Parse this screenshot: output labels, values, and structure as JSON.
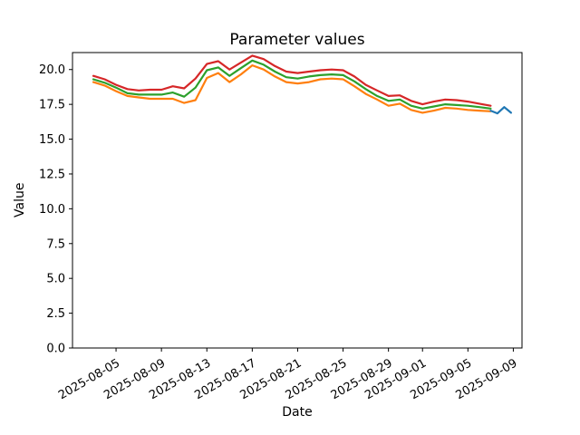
{
  "figure": {
    "title": "Parameter values",
    "xlabel": "Date",
    "ylabel": "Value",
    "background": "#ffffff",
    "spine_color": "#000000"
  },
  "chart_data": {
    "type": "line",
    "title": "Parameter values",
    "xlabel": "Date",
    "ylabel": "Value",
    "grid": false,
    "legend_position": "none",
    "ylim": [
      0.0,
      21.22
    ],
    "y_ticks": [
      0.0,
      2.5,
      5.0,
      7.5,
      10.0,
      12.5,
      15.0,
      17.5,
      20.0
    ],
    "x_start_date": "2025-08-03",
    "x_tick_labels": [
      "2025-08-05",
      "2025-08-09",
      "2025-08-13",
      "2025-08-17",
      "2025-08-21",
      "2025-08-25",
      "2025-08-29",
      "2025-09-01",
      "2025-09-05",
      "2025-09-09"
    ],
    "x_tick_day_index": [
      2,
      6,
      10,
      14,
      18,
      22,
      26,
      29,
      33,
      37
    ],
    "dates": [
      "2025-08-03",
      "2025-08-04",
      "2025-08-05",
      "2025-08-06",
      "2025-08-07",
      "2025-08-08",
      "2025-08-09",
      "2025-08-10",
      "2025-08-11",
      "2025-08-12",
      "2025-08-13",
      "2025-08-14",
      "2025-08-15",
      "2025-08-16",
      "2025-08-17",
      "2025-08-18",
      "2025-08-19",
      "2025-08-20",
      "2025-08-21",
      "2025-08-22",
      "2025-08-23",
      "2025-08-24",
      "2025-08-25",
      "2025-08-26",
      "2025-08-27",
      "2025-08-28",
      "2025-08-29",
      "2025-08-30",
      "2025-08-31",
      "2025-09-01",
      "2025-09-02",
      "2025-09-03",
      "2025-09-04",
      "2025-09-05",
      "2025-09-06",
      "2025-09-07"
    ],
    "series": [
      {
        "name": "red-parameter-line",
        "color": "#d62728",
        "values": [
          19.55,
          19.3,
          18.9,
          18.6,
          18.5,
          18.55,
          18.55,
          18.8,
          18.65,
          19.35,
          20.4,
          20.6,
          20.0,
          20.5,
          21.0,
          20.75,
          20.25,
          19.85,
          19.75,
          19.85,
          19.95,
          20.0,
          19.95,
          19.5,
          18.9,
          18.5,
          18.1,
          18.15,
          17.75,
          17.5,
          17.7,
          17.85,
          17.8,
          17.7,
          17.55,
          17.4
        ]
      },
      {
        "name": "green-parameter-line",
        "color": "#2ca02c",
        "values": [
          19.3,
          19.05,
          18.7,
          18.3,
          18.2,
          18.2,
          18.2,
          18.35,
          18.05,
          18.7,
          19.95,
          20.15,
          19.55,
          20.1,
          20.65,
          20.35,
          19.85,
          19.45,
          19.35,
          19.5,
          19.6,
          19.65,
          19.6,
          19.15,
          18.6,
          18.1,
          17.75,
          17.85,
          17.4,
          17.2,
          17.35,
          17.5,
          17.45,
          17.4,
          17.3,
          17.2
        ]
      },
      {
        "name": "orange-parameter-line",
        "color": "#ff7f0e",
        "values": [
          19.1,
          18.85,
          18.45,
          18.1,
          18.0,
          17.9,
          17.9,
          17.9,
          17.6,
          17.8,
          19.4,
          19.75,
          19.1,
          19.65,
          20.3,
          20.0,
          19.5,
          19.1,
          19.0,
          19.1,
          19.3,
          19.35,
          19.3,
          18.8,
          18.25,
          17.85,
          17.4,
          17.55,
          17.1,
          16.9,
          17.05,
          17.25,
          17.2,
          17.1,
          17.05,
          17.0
        ]
      },
      {
        "name": "blue-observed-line",
        "color": "#1f77b4",
        "x_days": [
          35.0,
          35.6,
          36.2,
          36.8
        ],
        "values": [
          17.05,
          16.85,
          17.3,
          16.9
        ]
      }
    ]
  }
}
